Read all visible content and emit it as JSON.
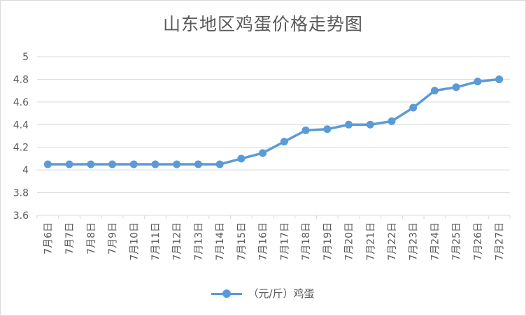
{
  "chart_data": {
    "type": "line",
    "title": "山东地区鸡蛋价格走势图",
    "categories": [
      "7月6日",
      "7月7日",
      "7月8日",
      "7月9日",
      "7月10日",
      "7月11日",
      "7月12日",
      "7月13日",
      "7月14日",
      "7月15日",
      "7月16日",
      "7月17日",
      "7月18日",
      "7月19日",
      "7月20日",
      "7月21日",
      "7月22日",
      "7月23日",
      "7月24日",
      "7月25日",
      "7月26日",
      "7月27日"
    ],
    "series": [
      {
        "name": "（元/斤）鸡蛋",
        "values": [
          4.05,
          4.05,
          4.05,
          4.05,
          4.05,
          4.05,
          4.05,
          4.05,
          4.05,
          4.1,
          4.15,
          4.25,
          4.35,
          4.36,
          4.4,
          4.4,
          4.43,
          4.55,
          4.7,
          4.73,
          4.78,
          4.8
        ],
        "color": "#5b9bd5"
      }
    ],
    "ylim": [
      3.6,
      5
    ],
    "yticks": [
      "3.6",
      "3.8",
      "4",
      "4.2",
      "4.4",
      "4.6",
      "4.8",
      "5"
    ],
    "grid": true,
    "legend_position": "bottom",
    "xlabel": "",
    "ylabel": ""
  }
}
